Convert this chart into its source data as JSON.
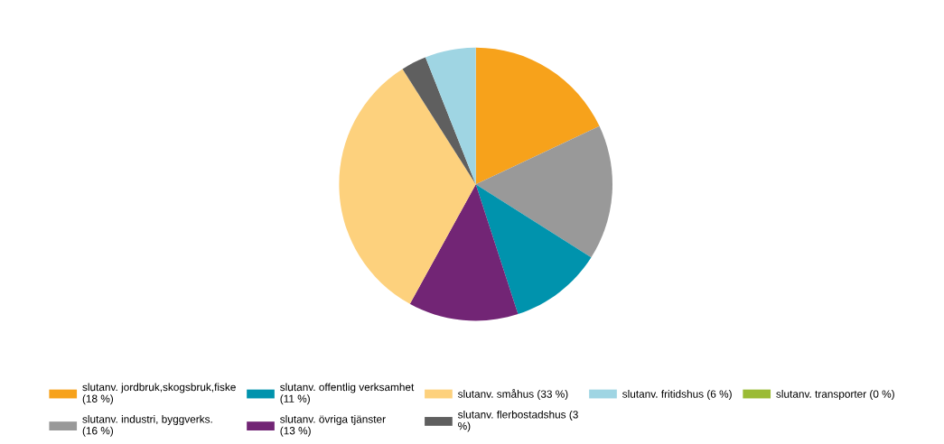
{
  "chart_data": {
    "type": "pie",
    "categories": [
      "slutanv. jordbruk,skogsbruk,fiske\n(18 %)",
      "slutanv. industri, byggverks.\n(16 %)",
      "slutanv. offentlig verksamhet\n(11 %)",
      "slutanv. övriga tjänster\n(13 %)",
      "slutanv. småhus (33 %)",
      "slutanv. flerbostadshus (3\n%)",
      "slutanv. fritidshus (6 %)",
      "slutanv. transporter (0 %)"
    ],
    "values": [
      18,
      16,
      11,
      13,
      33,
      3,
      6,
      0
    ],
    "colors": [
      "#f7a21b",
      "#999999",
      "#0093ad",
      "#722575",
      "#fdd17d",
      "#5f5f5f",
      "#9fd5e3",
      "#9bbb35"
    ],
    "legend": "bottom"
  }
}
